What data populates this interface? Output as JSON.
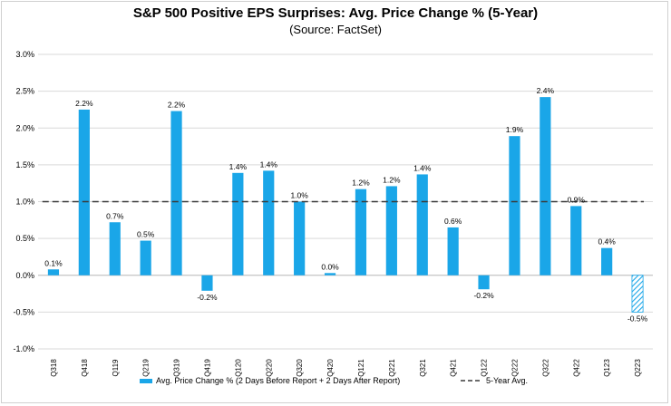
{
  "title": "S&P 500 Positive EPS Surprises: Avg. Price Change % (5-Year)",
  "subtitle": "(Source: FactSet)",
  "colors": {
    "bar": "#1aa6e8",
    "avg_line": "#3a3a3a",
    "grid": "#d9d9d9"
  },
  "chart_data": {
    "type": "bar",
    "title": "S&P 500 Positive EPS Surprises: Avg. Price Change % (5-Year)",
    "subtitle": "(Source: FactSet)",
    "categories": [
      "Q318",
      "Q418",
      "Q119",
      "Q219",
      "Q319",
      "Q419",
      "Q120",
      "Q220",
      "Q320",
      "Q420",
      "Q121",
      "Q221",
      "Q321",
      "Q421",
      "Q122",
      "Q222",
      "Q322",
      "Q422",
      "Q123",
      "Q223"
    ],
    "values": [
      0.08,
      2.25,
      0.72,
      0.47,
      2.23,
      -0.21,
      1.39,
      1.42,
      1.0,
      0.03,
      1.17,
      1.21,
      1.37,
      0.65,
      -0.19,
      1.89,
      2.42,
      0.94,
      0.37,
      -0.5
    ],
    "data_labels": [
      "0.1%",
      "2.2%",
      "0.7%",
      "0.5%",
      "2.2%",
      "-0.2%",
      "1.4%",
      "1.4%",
      "1.0%",
      "0.0%",
      "1.2%",
      "1.2%",
      "1.4%",
      "0.6%",
      "-0.2%",
      "1.9%",
      "2.4%",
      "0.9%",
      "0.4%",
      "-0.5%"
    ],
    "hatched_categories": [
      "Q223"
    ],
    "reference_line": {
      "name": "5-Year Avg.",
      "value": 1.0
    },
    "ylim": [
      -1.0,
      3.0
    ],
    "yticks": [
      3.0,
      2.5,
      2.0,
      1.5,
      1.0,
      0.5,
      0.0,
      -0.5,
      -1.0
    ],
    "ytick_labels": [
      "3.0%",
      "2.5%",
      "2.0%",
      "1.5%",
      "1.0%",
      "0.5%",
      "0.0%",
      "-0.5%",
      "-1.0%"
    ],
    "xlabel": "",
    "ylabel": "",
    "legend": [
      {
        "name": "Avg. Price Change % (2 Days Before Report + 2 Days After Report)",
        "style": "bar"
      },
      {
        "name": "5-Year Avg.",
        "style": "dashed-line"
      }
    ],
    "legend_position": "bottom-center"
  }
}
